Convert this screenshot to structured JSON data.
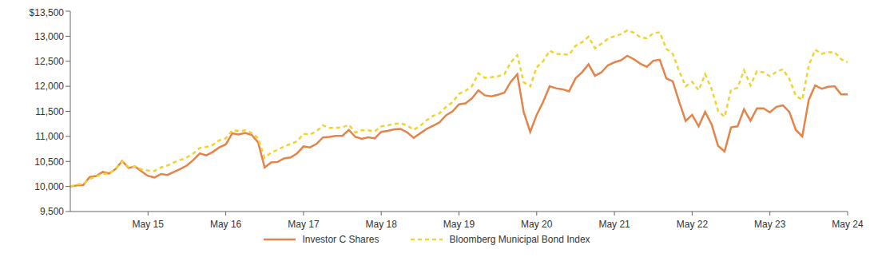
{
  "chart_data": {
    "type": "line",
    "categories": [
      null,
      null,
      null,
      null,
      null,
      null,
      null,
      null,
      null,
      null,
      null,
      null,
      "May 15",
      null,
      null,
      null,
      null,
      null,
      null,
      null,
      null,
      null,
      null,
      null,
      "May 16",
      null,
      null,
      null,
      null,
      null,
      null,
      null,
      null,
      null,
      null,
      null,
      "May 17",
      null,
      null,
      null,
      null,
      null,
      null,
      null,
      null,
      null,
      null,
      null,
      "May 18",
      null,
      null,
      null,
      null,
      null,
      null,
      null,
      null,
      null,
      null,
      null,
      "May 19",
      null,
      null,
      null,
      null,
      null,
      null,
      null,
      null,
      null,
      null,
      null,
      "May 20",
      null,
      null,
      null,
      null,
      null,
      null,
      null,
      null,
      null,
      null,
      null,
      "May 21",
      null,
      null,
      null,
      null,
      null,
      null,
      null,
      null,
      null,
      null,
      null,
      "May 22",
      null,
      null,
      null,
      null,
      null,
      null,
      null,
      null,
      null,
      null,
      null,
      "May 23",
      null,
      null,
      null,
      null,
      null,
      null,
      null,
      null,
      null,
      null,
      null,
      "May 24"
    ],
    "series": [
      {
        "name": "Investor C Shares",
        "color": "#e4844a",
        "line_style": "solid",
        "values": [
          10000,
          10020,
          10030,
          10190,
          10210,
          10290,
          10260,
          10350,
          10510,
          10370,
          10400,
          10300,
          10210,
          10180,
          10250,
          10230,
          10290,
          10350,
          10420,
          10530,
          10660,
          10620,
          10690,
          10780,
          10840,
          11060,
          11040,
          11070,
          11030,
          10880,
          10380,
          10480,
          10490,
          10560,
          10580,
          10660,
          10800,
          10780,
          10850,
          10980,
          10990,
          11010,
          11010,
          11130,
          10990,
          10950,
          10980,
          10960,
          11090,
          11110,
          11140,
          11150,
          11080,
          10970,
          11060,
          11150,
          11210,
          11280,
          11420,
          11500,
          11640,
          11660,
          11760,
          11920,
          11820,
          11800,
          11830,
          11870,
          12090,
          12240,
          11480,
          11090,
          11430,
          11690,
          12000,
          11960,
          11940,
          11900,
          12160,
          12280,
          12440,
          12210,
          12280,
          12420,
          12480,
          12520,
          12610,
          12540,
          12450,
          12390,
          12510,
          12530,
          12160,
          12100,
          11690,
          11310,
          11430,
          11200,
          11490,
          11240,
          10810,
          10700,
          11180,
          11200,
          11540,
          11310,
          11560,
          11560,
          11480,
          11590,
          11620,
          11490,
          11130,
          11000,
          11730,
          12020,
          11950,
          11990,
          12000,
          11840,
          11840
        ]
      },
      {
        "name": "Bloomberg Municipal Bond Index",
        "color": "#f2d22e",
        "line_style": "dashed",
        "values": [
          10000,
          10040,
          10050,
          10150,
          10200,
          10250,
          10260,
          10350,
          10500,
          10390,
          10400,
          10340,
          10320,
          10310,
          10380,
          10420,
          10480,
          10530,
          10580,
          10660,
          10770,
          10790,
          10830,
          10920,
          10960,
          11120,
          11110,
          11120,
          11070,
          10960,
          10570,
          10680,
          10730,
          10800,
          10850,
          10900,
          11050,
          11040,
          11100,
          11220,
          11170,
          11170,
          11180,
          11230,
          11080,
          11120,
          11120,
          11100,
          11200,
          11220,
          11250,
          11260,
          11220,
          11130,
          11210,
          11320,
          11410,
          11460,
          11590,
          11680,
          11850,
          11910,
          12000,
          12260,
          12170,
          12180,
          12200,
          12240,
          12480,
          12620,
          12080,
          12000,
          12380,
          12500,
          12710,
          12650,
          12640,
          12630,
          12810,
          12880,
          12990,
          12760,
          12850,
          12950,
          13000,
          13040,
          13120,
          13070,
          12980,
          12960,
          13060,
          13080,
          12750,
          12650,
          12300,
          12000,
          12090,
          11920,
          12240,
          11950,
          11510,
          11390,
          11930,
          11970,
          12320,
          12020,
          12300,
          12280,
          12200,
          12290,
          12340,
          12150,
          11810,
          11730,
          12420,
          12730,
          12650,
          12680,
          12680,
          12540,
          12480
        ]
      }
    ],
    "ylim": [
      9500,
      13500
    ],
    "yticks": [
      {
        "value": 9500,
        "label": "9,500"
      },
      {
        "value": 10000,
        "label": "10,000"
      },
      {
        "value": 10500,
        "label": "10,500"
      },
      {
        "value": 11000,
        "label": "11,000"
      },
      {
        "value": 11500,
        "label": "11,500"
      },
      {
        "value": 12000,
        "label": "12,000"
      },
      {
        "value": 12500,
        "label": "12,500"
      },
      {
        "value": 13000,
        "label": "13,000"
      },
      {
        "value": 13500,
        "label": "$13,500"
      }
    ],
    "grid": false,
    "legend": "bottom"
  }
}
